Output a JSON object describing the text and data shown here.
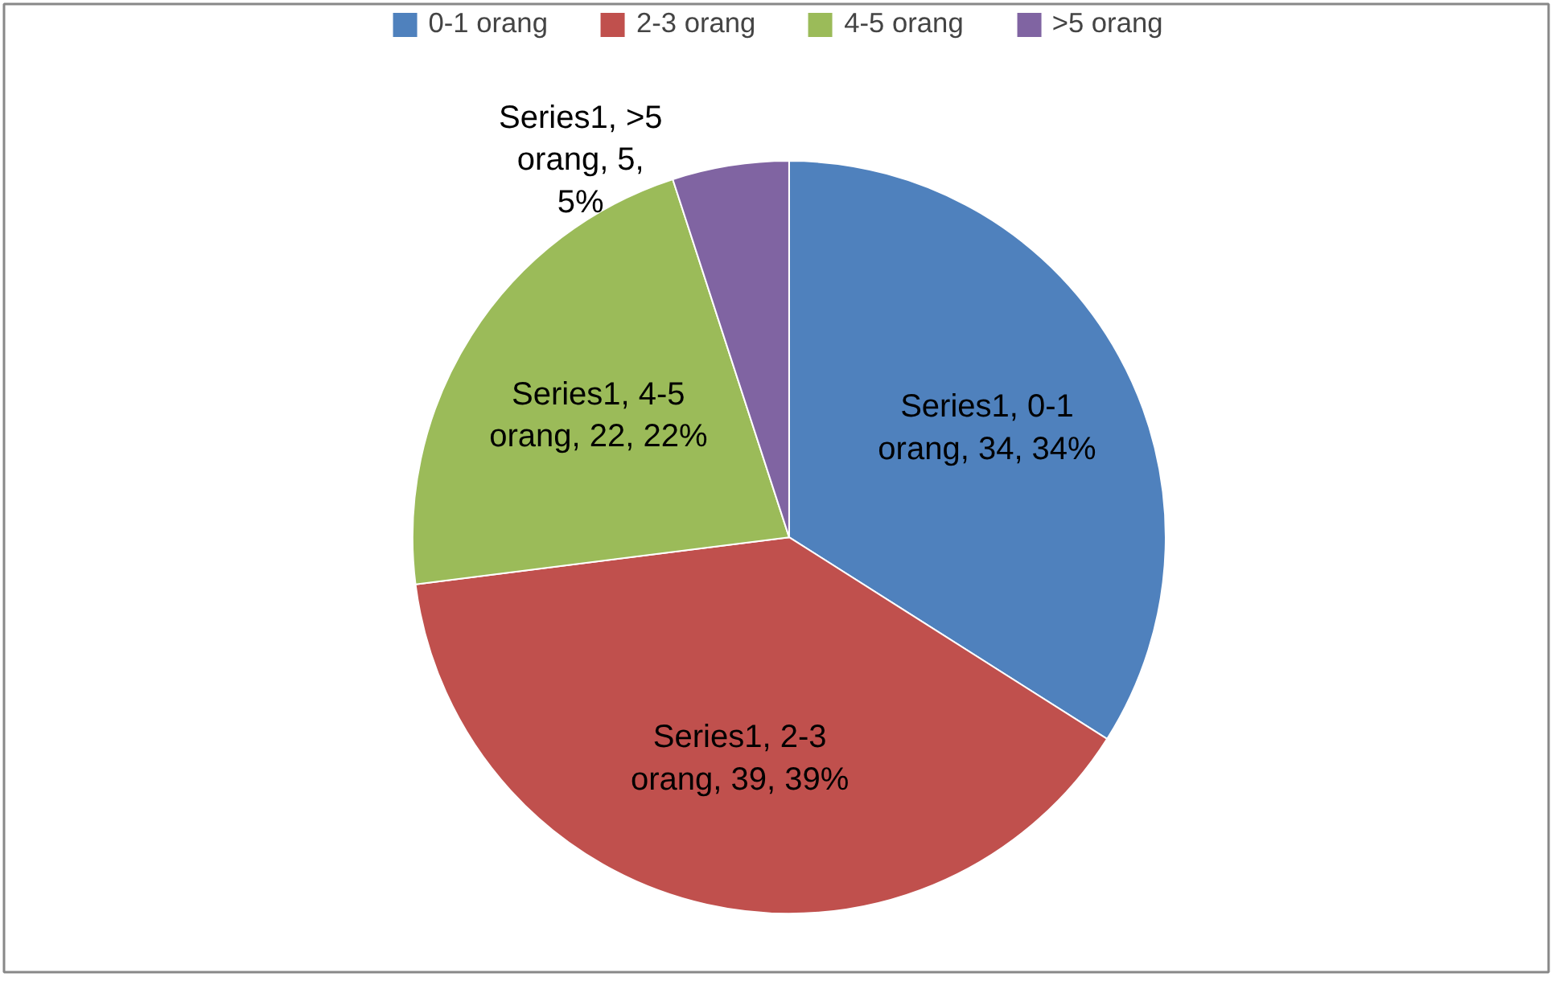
{
  "chart_data": {
    "type": "pie",
    "categories": [
      "0-1 orang",
      "2-3 orang",
      "4-5 orang",
      ">5 orang"
    ],
    "series": [
      {
        "values": [
          34,
          39,
          22,
          5
        ],
        "value_labels": [
          "Series1, 0-1 orang, 34, 34%",
          "Series1, 2-3 orang, 39, 39%",
          "Series1, 4-5 orang, 22, 22%",
          "Series1, >5 orang, 5, 5%"
        ]
      }
    ],
    "colors": [
      "#4f81bd",
      "#c0504d",
      "#9bbb59",
      "#8064a2"
    ],
    "legend": "top"
  }
}
